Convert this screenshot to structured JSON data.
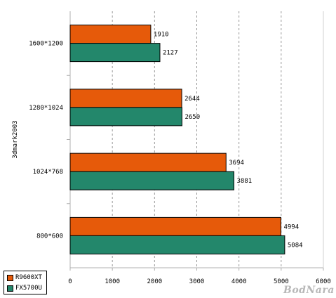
{
  "chart_data": {
    "type": "bar",
    "orientation": "horizontal",
    "ylabel": "3dmark2003",
    "categories": [
      "1600*1200",
      "1280*1024",
      "1024*768",
      "800*600"
    ],
    "series": [
      {
        "name": "R9600XT",
        "color": "#e65a0a",
        "values": [
          1910,
          2644,
          3694,
          4994
        ]
      },
      {
        "name": "FX5700U",
        "color": "#23876b",
        "values": [
          2127,
          2650,
          3881,
          5084
        ]
      }
    ],
    "xlim": [
      0,
      6000
    ],
    "xticks": [
      0,
      1000,
      2000,
      3000,
      4000,
      5000,
      6000
    ],
    "grid": true,
    "legend_position": "bottom-left"
  },
  "watermark": "BodNara"
}
